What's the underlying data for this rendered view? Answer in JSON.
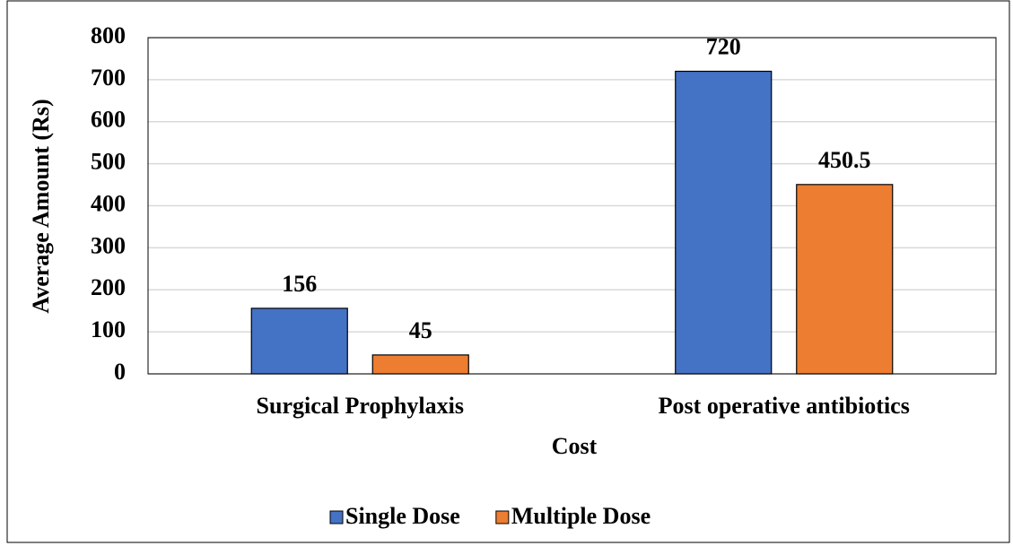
{
  "chart_data": {
    "type": "bar",
    "categories": [
      "Surgical Prophylaxis",
      "Post operative antibiotics"
    ],
    "series": [
      {
        "name": "Single Dose",
        "color": "#4472c4",
        "values": [
          156,
          720
        ]
      },
      {
        "name": "Multiple Dose",
        "color": "#ed7d31",
        "values": [
          45,
          450.5
        ]
      }
    ],
    "x_label": "Cost",
    "y_label": "Average Amount (Rs)",
    "ylim": [
      0,
      800
    ],
    "yticks": [
      0,
      100,
      200,
      300,
      400,
      500,
      600,
      700,
      800
    ],
    "grid": true,
    "legend": "bottom"
  }
}
